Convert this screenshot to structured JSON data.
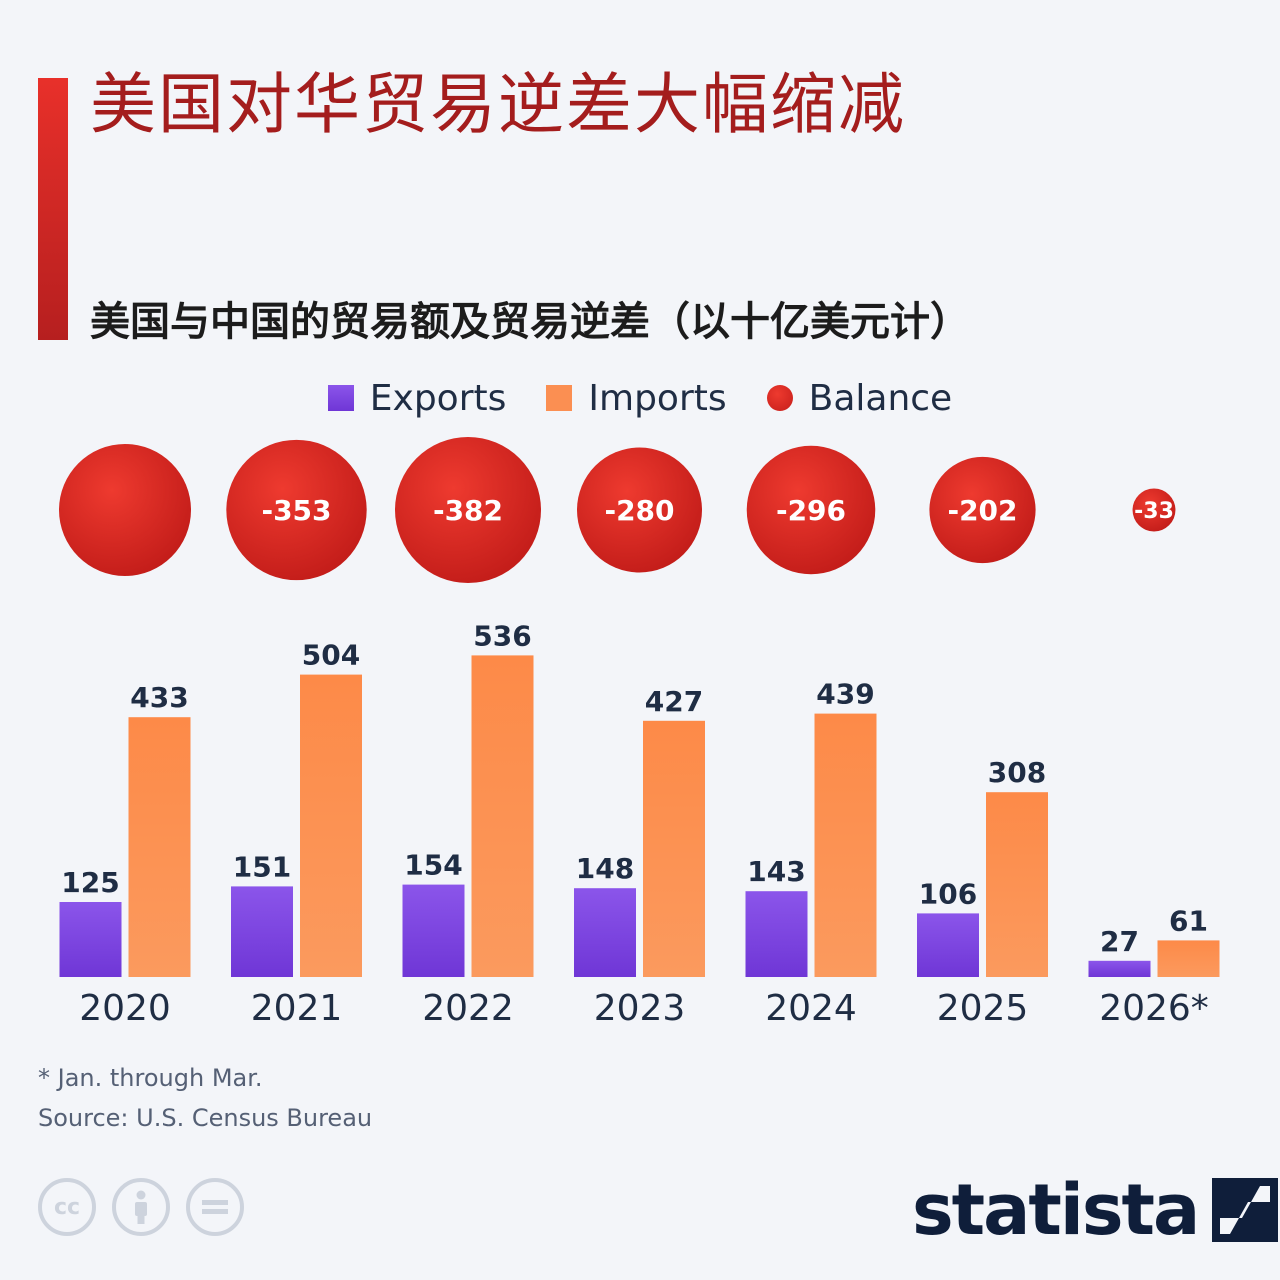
{
  "title": "美国对华贸易逆差大幅缩减",
  "subtitle": "美国与中国的贸易额及贸易逆差（以十亿美元计）",
  "legend": {
    "exports": "Exports",
    "imports": "Imports",
    "balance": "Balance"
  },
  "footnote": "* Jan. through Mar.",
  "source": "Source: U.S. Census Bureau",
  "logo": "statista",
  "license_icons": [
    "cc-icon",
    "attribution-icon",
    "no-derivatives-icon"
  ],
  "colors": {
    "exports": "#7a42df",
    "imports": "#fb8f52",
    "balance": "#d9281f",
    "title": "#a41d1d",
    "value_label": "#1f2d44"
  },
  "chart_data": {
    "type": "bar",
    "categories": [
      "2020",
      "2021",
      "2022",
      "2023",
      "2024",
      "2025",
      "2026*"
    ],
    "series": [
      {
        "name": "Exports",
        "values": [
          125,
          151,
          154,
          148,
          143,
          106,
          27
        ]
      },
      {
        "name": "Imports",
        "values": [
          433,
          504,
          536,
          427,
          439,
          308,
          61
        ]
      },
      {
        "name": "Balance",
        "values": [
          null,
          -353,
          -382,
          -280,
          -296,
          -202,
          -33
        ]
      }
    ],
    "ylim": [
      0,
      560
    ],
    "grid": false,
    "legend_position": "top-center"
  }
}
